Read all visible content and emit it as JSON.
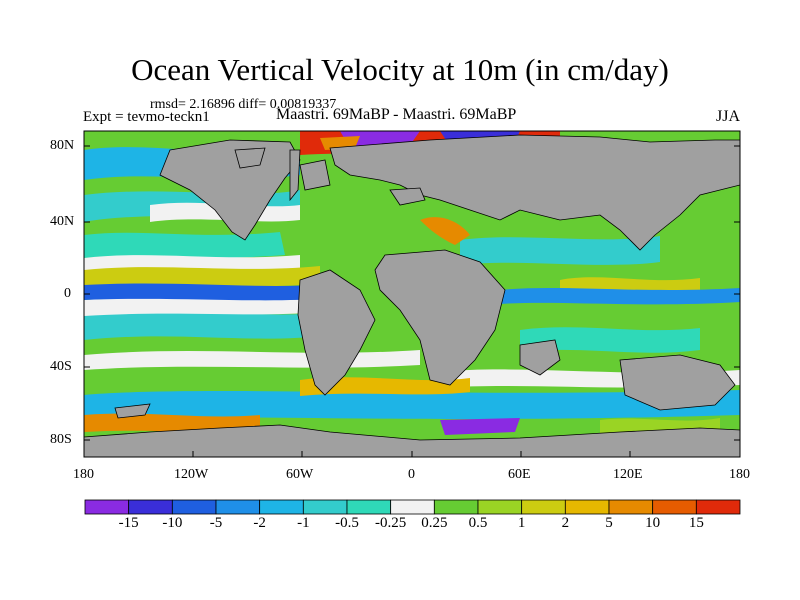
{
  "header": {
    "title": "Ocean Vertical Velocity at 10m (in cm/day)",
    "stats": "rmsd= 2.16896 diff= 0.00819337",
    "experiment": "Expt = tevmo-teckn1",
    "comparison": "Maastri. 69MaBP - Maastri. 69MaBP",
    "season": "JJA"
  },
  "map": {
    "projection": "cylindrical equidistant",
    "land_color": "#a0a0a0",
    "lat_ticks": [
      "80N",
      "40N",
      "0",
      "40S",
      "80S"
    ],
    "lon_ticks": [
      "180",
      "120W",
      "60W",
      "0",
      "60E",
      "120E",
      "180"
    ]
  },
  "colorbar": {
    "colors": [
      "#8a2be2",
      "#3a2ed9",
      "#1f5fe0",
      "#1f8fe8",
      "#1eb4e6",
      "#33cccc",
      "#2fd9b8",
      "#f2f2f2",
      "#66cc33",
      "#9ad424",
      "#cccc11",
      "#e6b800",
      "#e68a00",
      "#e65c00",
      "#e02a0a"
    ],
    "labels": [
      "-15",
      "-10",
      "-5",
      "-2",
      "-1",
      "-0.5",
      "-0.25",
      "0.25",
      "0.5",
      "1",
      "2",
      "5",
      "10",
      "15"
    ]
  }
}
